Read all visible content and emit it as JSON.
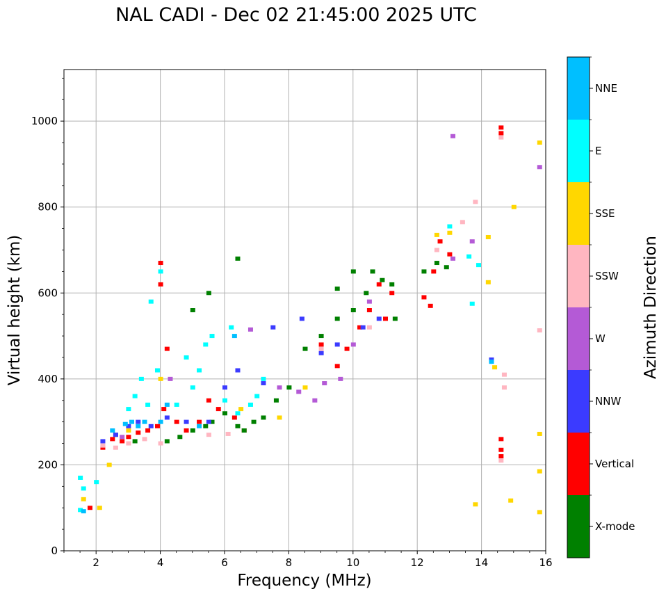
{
  "chart_data": {
    "type": "scatter",
    "title": "NAL CADI - Dec 02 21:45:00 2025 UTC",
    "xlabel": "Frequency (MHz)",
    "ylabel": "Virtual height (km)",
    "xlim": [
      1,
      16
    ],
    "ylim": [
      0,
      1120
    ],
    "xticks": [
      2,
      4,
      6,
      8,
      10,
      12,
      14,
      16
    ],
    "yticks": [
      0,
      200,
      400,
      600,
      800,
      1000
    ],
    "grid": true,
    "colorbar": {
      "label": "Azimuth Direction",
      "categories": [
        {
          "name": "X-mode",
          "color": "#008000"
        },
        {
          "name": "Vertical",
          "color": "#ff0000"
        },
        {
          "name": "NNW",
          "color": "#3b3bff"
        },
        {
          "name": "W",
          "color": "#b45ad6"
        },
        {
          "name": "SSW",
          "color": "#ffb6c1"
        },
        {
          "name": "SSE",
          "color": "#ffd700"
        },
        {
          "name": "E",
          "color": "#00ffff"
        },
        {
          "name": "NNE",
          "color": "#00bfff"
        }
      ]
    },
    "series": [
      {
        "name": "Vertical",
        "points": [
          [
            1.8,
            100
          ],
          [
            2.2,
            240
          ],
          [
            2.5,
            260
          ],
          [
            2.8,
            255
          ],
          [
            3.0,
            265
          ],
          [
            3.3,
            275
          ],
          [
            3.6,
            280
          ],
          [
            3.9,
            290
          ],
          [
            4.1,
            330
          ],
          [
            4.2,
            470
          ],
          [
            4.0,
            620
          ],
          [
            4.0,
            670
          ],
          [
            4.5,
            300
          ],
          [
            4.8,
            280
          ],
          [
            5.2,
            300
          ],
          [
            5.5,
            350
          ],
          [
            5.8,
            330
          ],
          [
            6.3,
            310
          ],
          [
            6.6,
            280
          ],
          [
            9.0,
            480
          ],
          [
            9.5,
            430
          ],
          [
            9.8,
            470
          ],
          [
            10.2,
            520
          ],
          [
            10.5,
            560
          ],
          [
            10.8,
            620
          ],
          [
            11.0,
            540
          ],
          [
            11.2,
            600
          ],
          [
            12.2,
            590
          ],
          [
            12.4,
            570
          ],
          [
            12.5,
            650
          ],
          [
            12.7,
            720
          ],
          [
            13.0,
            690
          ],
          [
            14.6,
            260
          ],
          [
            14.6,
            235
          ],
          [
            14.6,
            220
          ],
          [
            14.6,
            985
          ],
          [
            14.6,
            972
          ]
        ]
      },
      {
        "name": "X-mode",
        "points": [
          [
            2.6,
            270
          ],
          [
            3.2,
            255
          ],
          [
            4.2,
            255
          ],
          [
            4.6,
            265
          ],
          [
            5.0,
            280
          ],
          [
            5.4,
            290
          ],
          [
            5.6,
            300
          ],
          [
            6.0,
            320
          ],
          [
            6.4,
            290
          ],
          [
            6.6,
            280
          ],
          [
            6.9,
            300
          ],
          [
            7.2,
            310
          ],
          [
            7.6,
            350
          ],
          [
            8.0,
            380
          ],
          [
            5.0,
            560
          ],
          [
            5.5,
            600
          ],
          [
            6.4,
            680
          ],
          [
            8.5,
            470
          ],
          [
            9.0,
            500
          ],
          [
            9.5,
            540
          ],
          [
            9.5,
            610
          ],
          [
            10.0,
            560
          ],
          [
            10.0,
            650
          ],
          [
            10.4,
            600
          ],
          [
            10.6,
            650
          ],
          [
            10.9,
            630
          ],
          [
            11.2,
            620
          ],
          [
            11.3,
            540
          ],
          [
            12.2,
            650
          ],
          [
            12.6,
            670
          ],
          [
            12.9,
            660
          ]
        ]
      },
      {
        "name": "NNW",
        "points": [
          [
            2.2,
            255
          ],
          [
            2.6,
            270
          ],
          [
            3.0,
            290
          ],
          [
            3.3,
            300
          ],
          [
            3.7,
            290
          ],
          [
            4.2,
            310
          ],
          [
            4.8,
            300
          ],
          [
            5.5,
            300
          ],
          [
            6.0,
            380
          ],
          [
            6.4,
            420
          ],
          [
            7.2,
            390
          ],
          [
            7.5,
            520
          ],
          [
            8.4,
            540
          ],
          [
            9.0,
            460
          ],
          [
            9.5,
            480
          ],
          [
            10.3,
            520
          ],
          [
            10.8,
            540
          ],
          [
            14.3,
            445
          ]
        ]
      },
      {
        "name": "W",
        "points": [
          [
            2.8,
            265
          ],
          [
            4.3,
            400
          ],
          [
            6.8,
            515
          ],
          [
            7.7,
            380
          ],
          [
            8.3,
            370
          ],
          [
            8.8,
            350
          ],
          [
            9.1,
            390
          ],
          [
            9.6,
            400
          ],
          [
            10.0,
            480
          ],
          [
            13.1,
            965
          ],
          [
            13.1,
            680
          ],
          [
            13.7,
            720
          ],
          [
            15.8,
            893
          ],
          [
            10.5,
            580
          ]
        ]
      },
      {
        "name": "SSW",
        "points": [
          [
            2.2,
            245
          ],
          [
            2.6,
            240
          ],
          [
            3.0,
            250
          ],
          [
            3.5,
            260
          ],
          [
            4.0,
            250
          ],
          [
            5.5,
            270
          ],
          [
            6.1,
            272
          ],
          [
            9.0,
            470
          ],
          [
            10.5,
            520
          ],
          [
            12.6,
            700
          ],
          [
            13.4,
            765
          ],
          [
            13.8,
            812
          ],
          [
            14.7,
            410
          ],
          [
            14.7,
            380
          ],
          [
            14.6,
            210
          ],
          [
            14.6,
            962
          ],
          [
            15.8,
            513
          ]
        ]
      },
      {
        "name": "SSE",
        "points": [
          [
            1.6,
            120
          ],
          [
            2.1,
            100
          ],
          [
            2.4,
            200
          ],
          [
            3.0,
            280
          ],
          [
            4.0,
            400
          ],
          [
            6.5,
            330
          ],
          [
            7.7,
            310
          ],
          [
            8.5,
            380
          ],
          [
            12.6,
            735
          ],
          [
            13.0,
            740
          ],
          [
            13.8,
            108
          ],
          [
            14.2,
            625
          ],
          [
            14.2,
            730
          ],
          [
            14.4,
            427
          ],
          [
            14.9,
            117
          ],
          [
            15.0,
            800
          ],
          [
            15.8,
            950
          ],
          [
            15.8,
            272
          ],
          [
            15.8,
            185
          ],
          [
            15.8,
            90
          ]
        ]
      },
      {
        "name": "E",
        "points": [
          [
            1.5,
            95
          ],
          [
            1.5,
            170
          ],
          [
            1.6,
            145
          ],
          [
            2.0,
            160
          ],
          [
            3.0,
            330
          ],
          [
            3.2,
            360
          ],
          [
            3.4,
            400
          ],
          [
            3.6,
            340
          ],
          [
            3.9,
            420
          ],
          [
            3.7,
            580
          ],
          [
            4.0,
            650
          ],
          [
            4.5,
            340
          ],
          [
            4.8,
            450
          ],
          [
            5.0,
            380
          ],
          [
            5.2,
            420
          ],
          [
            5.4,
            480
          ],
          [
            5.6,
            500
          ],
          [
            6.0,
            350
          ],
          [
            6.2,
            520
          ],
          [
            6.4,
            320
          ],
          [
            6.8,
            340
          ],
          [
            7.0,
            360
          ],
          [
            7.2,
            400
          ],
          [
            13.0,
            755
          ],
          [
            13.6,
            685
          ],
          [
            13.7,
            575
          ],
          [
            13.9,
            665
          ]
        ]
      },
      {
        "name": "NNE",
        "points": [
          [
            1.6,
            92
          ],
          [
            2.5,
            280
          ],
          [
            2.9,
            295
          ],
          [
            3.1,
            300
          ],
          [
            3.3,
            290
          ],
          [
            3.5,
            300
          ],
          [
            4.0,
            300
          ],
          [
            4.2,
            340
          ],
          [
            5.2,
            290
          ],
          [
            6.3,
            500
          ],
          [
            14.3,
            440
          ]
        ]
      }
    ]
  }
}
